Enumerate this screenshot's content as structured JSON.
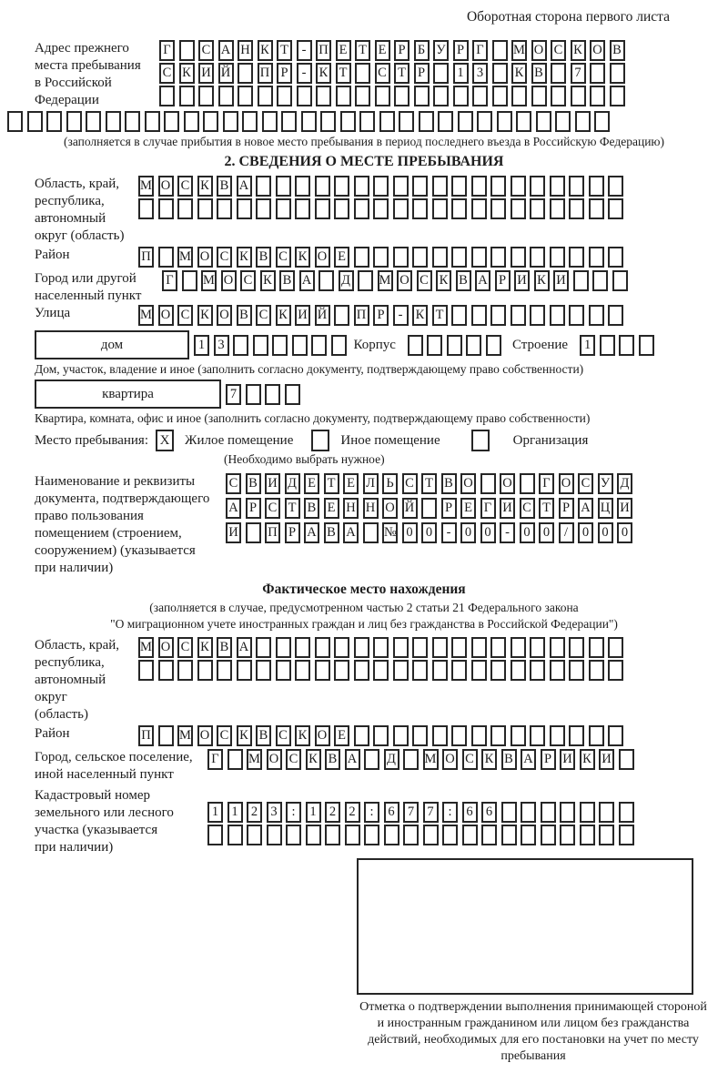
{
  "colors": {
    "ink": "#1d1d1d",
    "paper": "#ffffff"
  },
  "page_header": "Оборотная сторона первого листа",
  "prev_address": {
    "label": "Адрес прежнего\nместа пребывания\nв Российской\nФедерации",
    "rows": [
      {
        "value": "Г САНКТ-ПЕТЕРБУРГ МОСКОВ",
        "cells": 24
      },
      {
        "value": "СКИЙ ПР-КТ СТР 13 КВ 7",
        "cells": 24
      },
      {
        "value": "",
        "cells": 24
      },
      {
        "value": "",
        "cells": 31
      }
    ],
    "note": "(заполняется в случае прибытия в новое место пребывания в период последнего въезда в Российскую Федерацию)"
  },
  "section2": {
    "title": "2. СВЕДЕНИЯ О МЕСТЕ ПРЕБЫВАНИЯ",
    "region": {
      "label": "Область, край,\nреспублика,\nавтономный\nокруг (область)",
      "rows": [
        {
          "value": "МОСКВА",
          "cells": 25
        },
        {
          "value": "",
          "cells": 25
        }
      ]
    },
    "district": {
      "label": "Район",
      "row": {
        "value": "П МОСКВСКОЕ",
        "cells": 25
      }
    },
    "city": {
      "label": "Город или другой\nнаселенный пункт",
      "row": {
        "value": "Г МОСКВА Д МОСКВАРИКИ",
        "cells": 24
      }
    },
    "street": {
      "label": "Улица",
      "row": {
        "value": "МОСКОВСКИЙ ПР-КТ",
        "cells": 25
      }
    },
    "house": {
      "box_label": "дом",
      "row": {
        "value": "13",
        "cells": 8
      },
      "korpus_label": "Корпус",
      "korpus_row": {
        "value": "",
        "cells": 5
      },
      "stroenie_label": "Строение",
      "stroenie_row": {
        "value": "1",
        "cells": 4
      },
      "note": "Дом, участок, владение и иное (заполнить согласно документу, подтверждающему право собственности)"
    },
    "apartment": {
      "box_label": "квартира",
      "row": {
        "value": "7",
        "cells": 4
      },
      "note": "Квартира, комната, офис и иное (заполнить согласно документу, подтверждающему право собственности)"
    },
    "stay_type": {
      "label": "Место пребывания:",
      "options": [
        {
          "mark": "X",
          "label": "Жилое помещение"
        },
        {
          "mark": "",
          "label": "Иное помещение"
        },
        {
          "mark": "",
          "label": "Организация"
        }
      ],
      "note": "(Необходимо выбрать нужное)"
    },
    "document": {
      "label": "Наименование и реквизиты\nдокумента, подтверждающего\nправо пользования\nпомещением (строением,\nсооружением) (указывается\nпри наличии)",
      "rows": [
        {
          "value": "СВИДЕТЕЛЬСТВО О ГОСУД",
          "cells": 21
        },
        {
          "value": "АРСТВЕННОЙ РЕГИСТРАЦИ",
          "cells": 21
        },
        {
          "value": "И ПРАВА №00-00-00/000",
          "cells": 21
        }
      ]
    }
  },
  "actual_location": {
    "title": "Фактическое место нахождения",
    "note_line1": "(заполняется в случае, предусмотренном частью 2 статьи 21 Федерального закона",
    "note_line2": "\"О миграционном учете иностранных граждан и лиц без гражданства в Российской Федерации\")",
    "region": {
      "label": "Область, край,\nреспублика,\nавтономный округ\n(область)",
      "rows": [
        {
          "value": "МОСКВА",
          "cells": 25
        },
        {
          "value": "",
          "cells": 25
        }
      ]
    },
    "district": {
      "label": "Район",
      "row": {
        "value": "П МОСКВСКОЕ",
        "cells": 25
      }
    },
    "city": {
      "label": "Город, сельское поселение,\nиной населенный пункт",
      "row": {
        "value": "Г МОСКВА Д МОСКВАРИКИ",
        "cells": 22
      }
    },
    "cadastral": {
      "label": "Кадастровый номер\nземельного или лесного\nучастка (указывается\nпри наличии)",
      "rows": [
        {
          "value": "1123:122:677:66",
          "cells": 22
        },
        {
          "value": "",
          "cells": 22
        }
      ]
    }
  },
  "stamp": {
    "caption": "Отметка о подтверждении выполнения принимающей стороной и иностранным гражданином или лицом без гражданства действий, необходимых для его постановки на учет по месту пребывания"
  }
}
